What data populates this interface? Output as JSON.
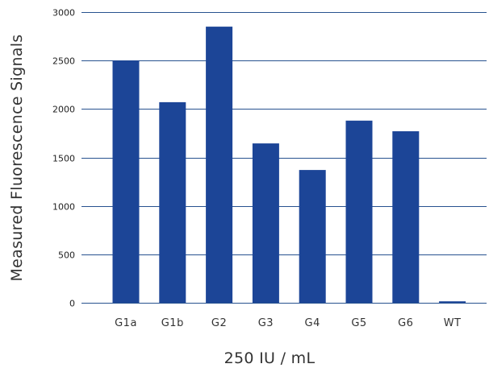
{
  "chart_data": {
    "type": "bar",
    "title": "",
    "xlabel": "250 IU / mL",
    "ylabel": "Measured Fluorescence Signals",
    "categories": [
      "G1a",
      "G1b",
      "G2",
      "G3",
      "G4",
      "G5",
      "G6",
      "WT"
    ],
    "values": [
      2500,
      2070,
      2850,
      1645,
      1370,
      1880,
      1770,
      15
    ],
    "ylim": [
      0,
      3000
    ],
    "yticks": [
      "0",
      "500",
      "1000",
      "1500",
      "2000",
      "2500",
      "3000"
    ],
    "grid": "horizontal",
    "legend": "none",
    "colors": {
      "bar": "#1c4597",
      "grid": "#27528f"
    }
  }
}
